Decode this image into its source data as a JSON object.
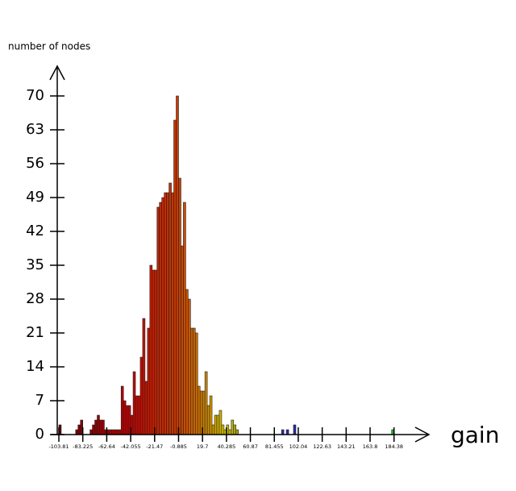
{
  "chart_data": {
    "type": "histogram",
    "y_label": "number of nodes",
    "x_label": "gain",
    "bins": [
      -103.81,
      -101.7515,
      -99.693,
      -97.6345,
      -95.576,
      -93.5175,
      -91.459,
      -89.4005,
      -87.342,
      -85.2835,
      -83.225,
      -81.1665,
      -79.108,
      -77.0495,
      -74.991,
      -72.9325,
      -70.874,
      -68.8155,
      -66.757,
      -64.6985,
      -62.64,
      -60.5815,
      -58.523,
      -56.4645,
      -54.406,
      -52.3475,
      -50.289,
      -48.2305,
      -46.172,
      -44.1135,
      -42.055,
      -39.9965,
      -37.938,
      -35.8795,
      -33.821,
      -31.7625,
      -29.704,
      -27.6455,
      -25.587,
      -23.5285,
      -21.47,
      -19.4115,
      -17.353,
      -15.2945,
      -13.236,
      -11.1775,
      -9.119,
      -7.0605,
      -5.002,
      -2.9435,
      -0.885,
      1.1735,
      3.232,
      5.2905,
      7.349,
      9.4075,
      11.466,
      13.5245,
      15.583,
      17.6415,
      19.7,
      21.7585,
      23.817,
      25.8755,
      27.934,
      29.9925,
      32.051,
      34.1095,
      36.168,
      38.2265,
      40.285,
      42.3435,
      44.402,
      46.4605,
      48.519,
      50.5775,
      52.636,
      54.6945,
      56.753,
      58.8115,
      60.87,
      62.9285,
      64.987,
      67.0455,
      69.104,
      71.1625,
      73.221,
      75.2795,
      77.338,
      79.3965,
      81.455,
      83.5135,
      85.572,
      87.6305,
      89.689,
      91.7475,
      93.806,
      95.8645,
      97.923,
      99.9815,
      102.04,
      104.0985,
      106.157,
      108.2155,
      110.274,
      112.3325,
      114.391,
      116.4495,
      118.508,
      120.5665,
      122.625,
      124.6835,
      126.742,
      128.8005,
      130.859,
      132.9175,
      134.976,
      137.0345,
      139.093,
      141.1515,
      143.21,
      145.2685,
      147.327,
      149.3855,
      151.444,
      153.5025,
      155.561,
      157.6195,
      159.678,
      161.7365,
      163.795,
      165.8535,
      167.912,
      169.9705,
      172.029,
      174.0875,
      176.146,
      178.2045,
      180.263,
      182.3215,
      184.38
    ],
    "values": [
      2,
      0,
      0,
      0,
      0,
      0,
      0,
      1,
      2,
      3,
      0,
      0,
      0,
      1,
      2,
      3,
      4,
      3,
      3,
      1,
      1,
      1,
      1,
      1,
      1,
      1,
      10,
      7,
      6,
      6,
      4,
      13,
      8,
      8,
      16,
      24,
      11,
      22,
      35,
      34,
      34,
      47,
      48,
      49,
      50,
      50,
      52,
      50,
      65,
      70,
      53,
      39,
      48,
      30,
      28,
      22,
      22,
      21,
      10,
      9,
      9,
      13,
      6,
      8,
      2,
      4,
      4,
      5,
      2,
      1,
      2,
      1,
      3,
      2,
      1,
      0,
      0,
      0,
      0,
      0,
      0,
      0,
      0,
      0,
      0,
      0,
      0,
      0,
      0,
      0,
      0,
      0,
      0,
      1,
      0,
      1,
      0,
      0,
      2,
      0,
      0,
      0,
      0,
      0,
      0,
      0,
      0,
      0,
      0,
      0,
      0,
      0,
      0,
      0,
      0,
      0,
      0,
      0,
      0,
      0,
      0,
      0,
      0,
      0,
      0,
      0,
      0,
      0,
      0,
      0,
      0,
      0,
      0,
      0,
      0,
      0,
      0,
      0,
      0,
      1
    ],
    "color_stops": [
      {
        "x": -103.81,
        "color": "#600000"
      },
      {
        "x": -42.055,
        "color": "#c00000"
      },
      {
        "x": -0.885,
        "color": "#c83c00"
      },
      {
        "x": 19.7,
        "color": "#cc7a00"
      },
      {
        "x": 40.285,
        "color": "#d0c400"
      },
      {
        "x": 60.87,
        "color": "#707048"
      },
      {
        "x": 81.455,
        "color": "#2828a8"
      },
      {
        "x": 102.04,
        "color": "#2828a8"
      },
      {
        "x": 122.63,
        "color": "#00c000"
      }
    ],
    "xlim": [
      -103.81,
      213
    ],
    "ylim": [
      0,
      76
    ],
    "xticks": [
      -103.81,
      -83.225,
      -62.64,
      -42.055,
      -21.47,
      -0.885,
      19.7,
      40.285,
      60.87,
      81.455,
      102.04,
      122.63,
      143.21,
      163.8,
      184.38
    ],
    "yticks": [
      0,
      7,
      14,
      21,
      28,
      35,
      42,
      49,
      56,
      63,
      70
    ]
  }
}
